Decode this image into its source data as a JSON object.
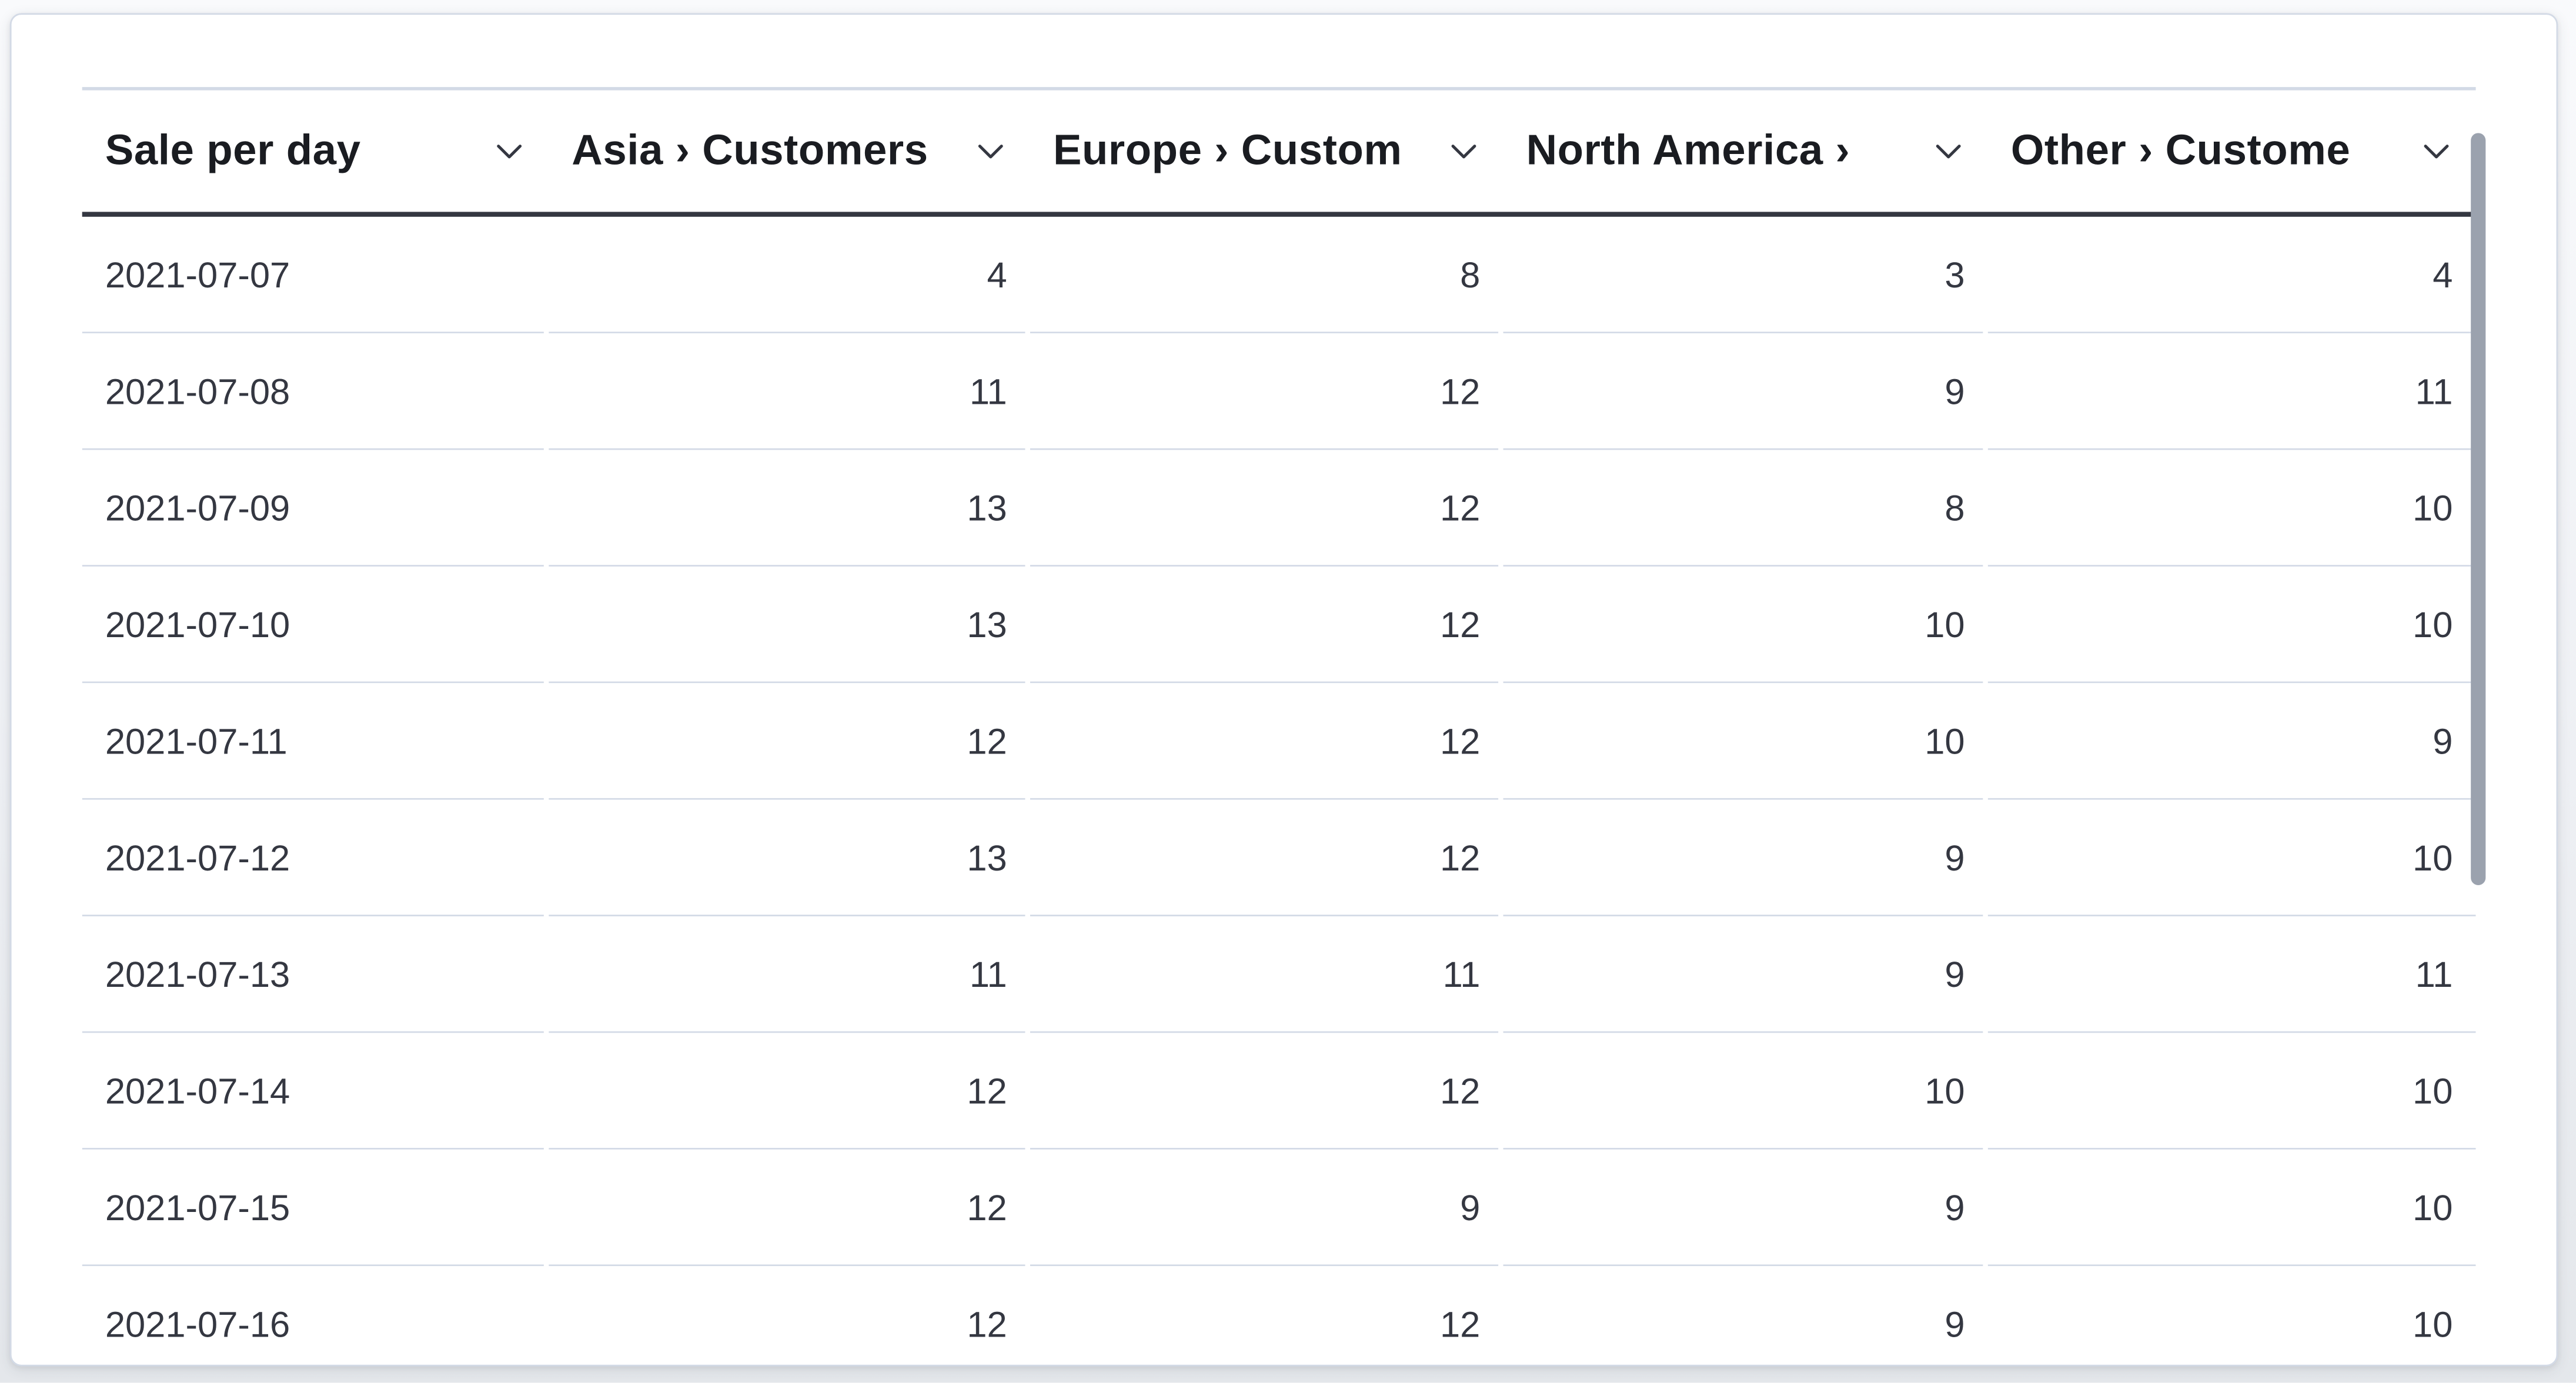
{
  "panel": {
    "type": "data-table-visualization"
  },
  "table": {
    "columns": [
      {
        "id": "sale-per-day",
        "label": "Sale per day"
      },
      {
        "id": "asia",
        "label": "Asia › Customers"
      },
      {
        "id": "europe",
        "label": "Europe › Custom"
      },
      {
        "id": "north-america",
        "label": "North America ›"
      },
      {
        "id": "other",
        "label": "Other › Custome"
      }
    ],
    "sort_icon": "chevron-down",
    "rows": [
      [
        "2021-07-07",
        "4",
        "8",
        "3",
        "4"
      ],
      [
        "2021-07-08",
        "11",
        "12",
        "9",
        "11"
      ],
      [
        "2021-07-09",
        "13",
        "12",
        "8",
        "10"
      ],
      [
        "2021-07-10",
        "13",
        "12",
        "10",
        "10"
      ],
      [
        "2021-07-11",
        "12",
        "12",
        "10",
        "9"
      ],
      [
        "2021-07-12",
        "13",
        "12",
        "9",
        "10"
      ],
      [
        "2021-07-13",
        "11",
        "11",
        "9",
        "11"
      ],
      [
        "2021-07-14",
        "12",
        "12",
        "10",
        "10"
      ],
      [
        "2021-07-15",
        "12",
        "9",
        "9",
        "10"
      ],
      [
        "2021-07-16",
        "12",
        "12",
        "9",
        "10"
      ]
    ]
  },
  "colors": {
    "header_text": "#1a1c21",
    "body_text": "#343741",
    "row_divider": "#d3dae6",
    "header_underline": "#343741",
    "panel_border": "#d3dae6",
    "panel_background": "#ffffff",
    "scrollbar_thumb": "#9ba2ae"
  },
  "scrollbar": {
    "orientation": "vertical",
    "position": "partial-top"
  }
}
